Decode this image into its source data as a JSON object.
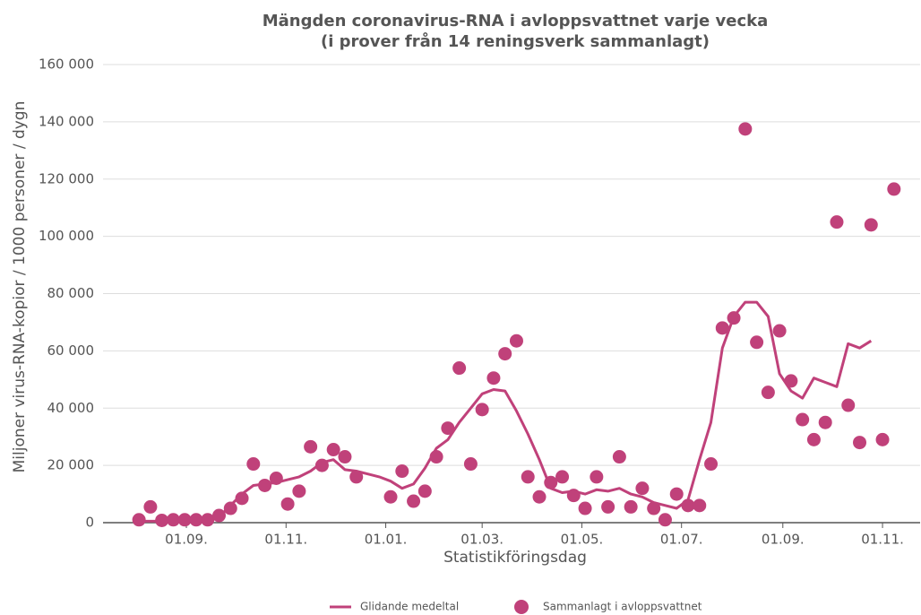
{
  "chart_data": {
    "type": "line",
    "title": "Mängden coronavirus-RNA i avloppsvattnet varje vecka",
    "subtitle": "(i prover från 14 reningsverk sammanlagt)",
    "y_label": "Miljoner virus-RNA-kopior / 1000 personer / dygn",
    "x_label": "Statistikföringsdag",
    "x": [
      2,
      9,
      16,
      23,
      30,
      37,
      44,
      51,
      58,
      65,
      72,
      79,
      86,
      93,
      100,
      107,
      114,
      121,
      128,
      135,
      142,
      149,
      156,
      163,
      170,
      177,
      184,
      191,
      198,
      205,
      212,
      219,
      226,
      233,
      240,
      247,
      254,
      261,
      268,
      275,
      282,
      289,
      296,
      303,
      310,
      317,
      324,
      331,
      338,
      345,
      352,
      359,
      366,
      373,
      380,
      387,
      394,
      401,
      408,
      415,
      422,
      429,
      436,
      443,
      450,
      457,
      464
    ],
    "xlim": [
      -20,
      480
    ],
    "xticks": [
      {
        "value": 31,
        "label": "01.09."
      },
      {
        "value": 92,
        "label": "01.11."
      },
      {
        "value": 153,
        "label": "01.01."
      },
      {
        "value": 212,
        "label": "01.03."
      },
      {
        "value": 273,
        "label": "01.05."
      },
      {
        "value": 334,
        "label": "01.07."
      },
      {
        "value": 396,
        "label": "01.09."
      },
      {
        "value": 457,
        "label": "01.11."
      }
    ],
    "ylim": [
      0,
      160000
    ],
    "yticks": [
      0,
      {
        "value": 20000,
        "label": "20 000"
      },
      {
        "value": 40000,
        "label": "40 000"
      },
      {
        "value": 60000,
        "label": "60 000"
      },
      {
        "value": 80000,
        "label": "80 000"
      },
      {
        "value": 100000,
        "label": "100 000"
      },
      {
        "value": 120000,
        "label": "120 000"
      },
      {
        "value": 140000,
        "label": "140 000"
      },
      {
        "value": 160000,
        "label": "160 000"
      }
    ],
    "grid": true,
    "legend": "bottom",
    "series": [
      {
        "name": "Glidande medeltal",
        "type": "line",
        "color": "#c0417a",
        "values": [
          500,
          500,
          500,
          500,
          500,
          500,
          1000,
          2000,
          6000,
          10000,
          13000,
          13500,
          14000,
          15000,
          16000,
          18000,
          21000,
          22000,
          18500,
          18000,
          17000,
          16000,
          14500,
          12000,
          13500,
          19000,
          26000,
          29000,
          35000,
          40000,
          45000,
          46500,
          46000,
          39000,
          31000,
          22000,
          12000,
          10500,
          11000,
          10000,
          11500,
          11000,
          12000,
          10000,
          9000,
          7000,
          6000,
          5000,
          8000,
          22000,
          35000,
          61000,
          72000,
          77000,
          77000,
          72000,
          52000,
          46000,
          43500,
          50500,
          49000,
          47500,
          62500,
          61000,
          63500,
          null,
          null
        ]
      },
      {
        "name": "Sammanlagt i avloppsvattnet",
        "type": "scatter",
        "color": "#c0417a",
        "values": [
          1000,
          5500,
          800,
          1000,
          1000,
          1000,
          1000,
          2500,
          5000,
          8500,
          20500,
          13000,
          15500,
          6500,
          11000,
          26500,
          20000,
          25500,
          23000,
          16000,
          null,
          null,
          9000,
          18000,
          7500,
          11000,
          23000,
          33000,
          54000,
          20500,
          39500,
          50500,
          59000,
          63500,
          16000,
          9000,
          14000,
          16000,
          9500,
          5000,
          16000,
          5500,
          23000,
          5500,
          12000,
          5000,
          1000,
          10000,
          6000,
          6000,
          20500,
          68000,
          71500,
          137500,
          63000,
          45500,
          67000,
          49500,
          36000,
          29000,
          35000,
          105000,
          41000,
          28000,
          104000,
          29000,
          116500
        ]
      }
    ]
  }
}
